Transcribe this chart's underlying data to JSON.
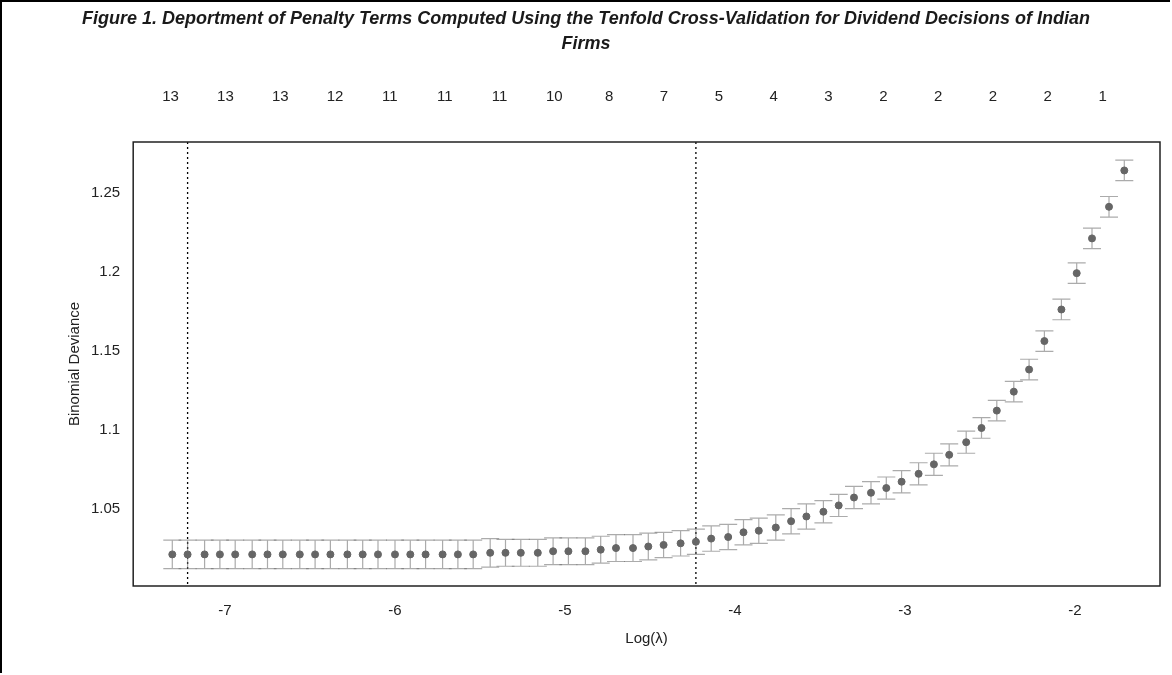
{
  "chart_data": {
    "type": "scatter",
    "title": "Figure 1. Deportment of Penalty Terms Computed Using the Tenfold Cross-Validation for Dividend Decisions of Indian Firms",
    "xlabel": "Log(λ)",
    "ylabel": "Binomial Deviance",
    "x": [
      -7.31,
      -7.22,
      -7.12,
      -7.03,
      -6.94,
      -6.84,
      -6.75,
      -6.66,
      -6.56,
      -6.47,
      -6.38,
      -6.28,
      -6.19,
      -6.1,
      -6.0,
      -5.91,
      -5.82,
      -5.72,
      -5.63,
      -5.54,
      -5.44,
      -5.35,
      -5.26,
      -5.16,
      -5.07,
      -4.98,
      -4.88,
      -4.79,
      -4.7,
      -4.6,
      -4.51,
      -4.42,
      -4.32,
      -4.23,
      -4.14,
      -4.04,
      -3.95,
      -3.86,
      -3.76,
      -3.67,
      -3.58,
      -3.48,
      -3.39,
      -3.3,
      -3.2,
      -3.11,
      -3.02,
      -2.92,
      -2.83,
      -2.74,
      -2.64,
      -2.55,
      -2.46,
      -2.36,
      -2.27,
      -2.18,
      -2.08,
      -1.99,
      -1.9,
      -1.8,
      -1.71
    ],
    "series": [
      {
        "color": "#666666",
        "values": [
          1.021,
          1.021,
          1.021,
          1.021,
          1.021,
          1.021,
          1.021,
          1.021,
          1.021,
          1.021,
          1.021,
          1.021,
          1.021,
          1.021,
          1.021,
          1.021,
          1.021,
          1.021,
          1.021,
          1.021,
          1.022,
          1.022,
          1.022,
          1.022,
          1.023,
          1.023,
          1.023,
          1.024,
          1.025,
          1.025,
          1.026,
          1.027,
          1.028,
          1.029,
          1.031,
          1.032,
          1.035,
          1.036,
          1.038,
          1.042,
          1.045,
          1.048,
          1.052,
          1.057,
          1.06,
          1.063,
          1.067,
          1.072,
          1.078,
          1.084,
          1.092,
          1.101,
          1.112,
          1.124,
          1.138,
          1.156,
          1.176,
          1.199,
          1.221,
          1.241,
          1.264
        ],
        "errors": [
          0.009,
          0.009,
          0.009,
          0.009,
          0.009,
          0.009,
          0.009,
          0.009,
          0.009,
          0.009,
          0.009,
          0.009,
          0.009,
          0.009,
          0.009,
          0.009,
          0.009,
          0.009,
          0.009,
          0.009,
          0.009,
          0.0085,
          0.0085,
          0.0085,
          0.0085,
          0.0085,
          0.0085,
          0.0085,
          0.0085,
          0.0085,
          0.0085,
          0.008,
          0.008,
          0.008,
          0.008,
          0.008,
          0.008,
          0.008,
          0.008,
          0.008,
          0.008,
          0.007,
          0.007,
          0.007,
          0.007,
          0.007,
          0.007,
          0.007,
          0.007,
          0.007,
          0.007,
          0.0065,
          0.0065,
          0.0065,
          0.0065,
          0.0065,
          0.0065,
          0.0065,
          0.0065,
          0.0065,
          0.0065
        ]
      }
    ],
    "xlim": [
      -7.54,
      -1.5
    ],
    "xticks": [
      -7,
      -6,
      -5,
      -4,
      -3,
      -2
    ],
    "annotations": [
      "13",
      "13",
      "13",
      "12",
      "11",
      "11",
      "11",
      "10",
      "8",
      "7",
      "5",
      "4",
      "3",
      "2",
      "2",
      "2",
      "2",
      "1"
    ],
    "ylim": [
      1.001,
      1.282
    ],
    "yticks": [
      1.05,
      1.1,
      1.15,
      1.2,
      1.25
    ],
    "ref_lines": [
      {
        "axis": "x",
        "value": -7.22,
        "color": "#000000",
        "line_style": "dotted"
      },
      {
        "axis": "x",
        "value": -4.23,
        "color": "#000000",
        "line_style": "dotted"
      }
    ],
    "grid": false,
    "legend": false,
    "marker": "circle"
  }
}
